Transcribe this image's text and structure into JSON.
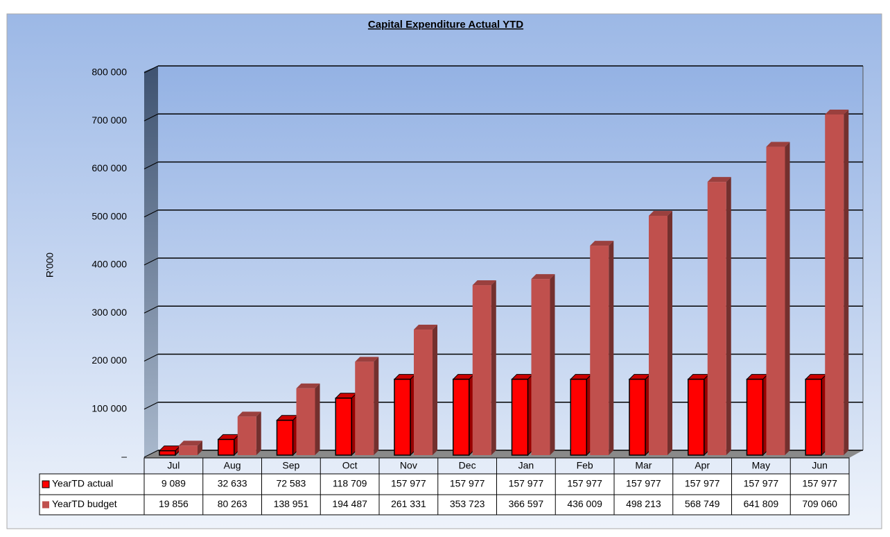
{
  "chart_data": {
    "type": "bar3d",
    "title": "Capital Expenditure Actual YTD",
    "y_label": "R'000",
    "categories": [
      "Jul",
      "Aug",
      "Sep",
      "Oct",
      "Nov",
      "Dec",
      "Jan",
      "Feb",
      "Mar",
      "Apr",
      "May",
      "Jun"
    ],
    "series": [
      {
        "name": "YearTD actual",
        "color": "#ff0000",
        "values": [
          9089,
          32633,
          72583,
          118709,
          157977,
          157977,
          157977,
          157977,
          157977,
          157977,
          157977,
          157977
        ],
        "value_labels": [
          "9 089",
          "32 633",
          "72 583",
          "118 709",
          "157 977",
          "157 977",
          "157 977",
          "157 977",
          "157 977",
          "157 977",
          "157 977",
          "157 977"
        ]
      },
      {
        "name": "YearTD budget",
        "color": "#c0504d",
        "values": [
          19856,
          80263,
          138951,
          194487,
          261331,
          353723,
          366597,
          436009,
          498213,
          568749,
          641809,
          709060
        ],
        "value_labels": [
          "19 856",
          "80 263",
          "138 951",
          "194 487",
          "261 331",
          "353 723",
          "366 597",
          "436 009",
          "498 213",
          "568 749",
          "641 809",
          "709 060"
        ]
      }
    ],
    "ylim": [
      0,
      800000
    ],
    "yticks": [
      {
        "value": 0,
        "label": "–"
      },
      {
        "value": 100000,
        "label": "100 000"
      },
      {
        "value": 200000,
        "label": "200 000"
      },
      {
        "value": 300000,
        "label": "300 000"
      },
      {
        "value": 400000,
        "label": "400 000"
      },
      {
        "value": 500000,
        "label": "500 000"
      },
      {
        "value": 600000,
        "label": "600 000"
      },
      {
        "value": 700000,
        "label": "700 000"
      },
      {
        "value": 800000,
        "label": "800 000"
      }
    ],
    "grid": true
  }
}
